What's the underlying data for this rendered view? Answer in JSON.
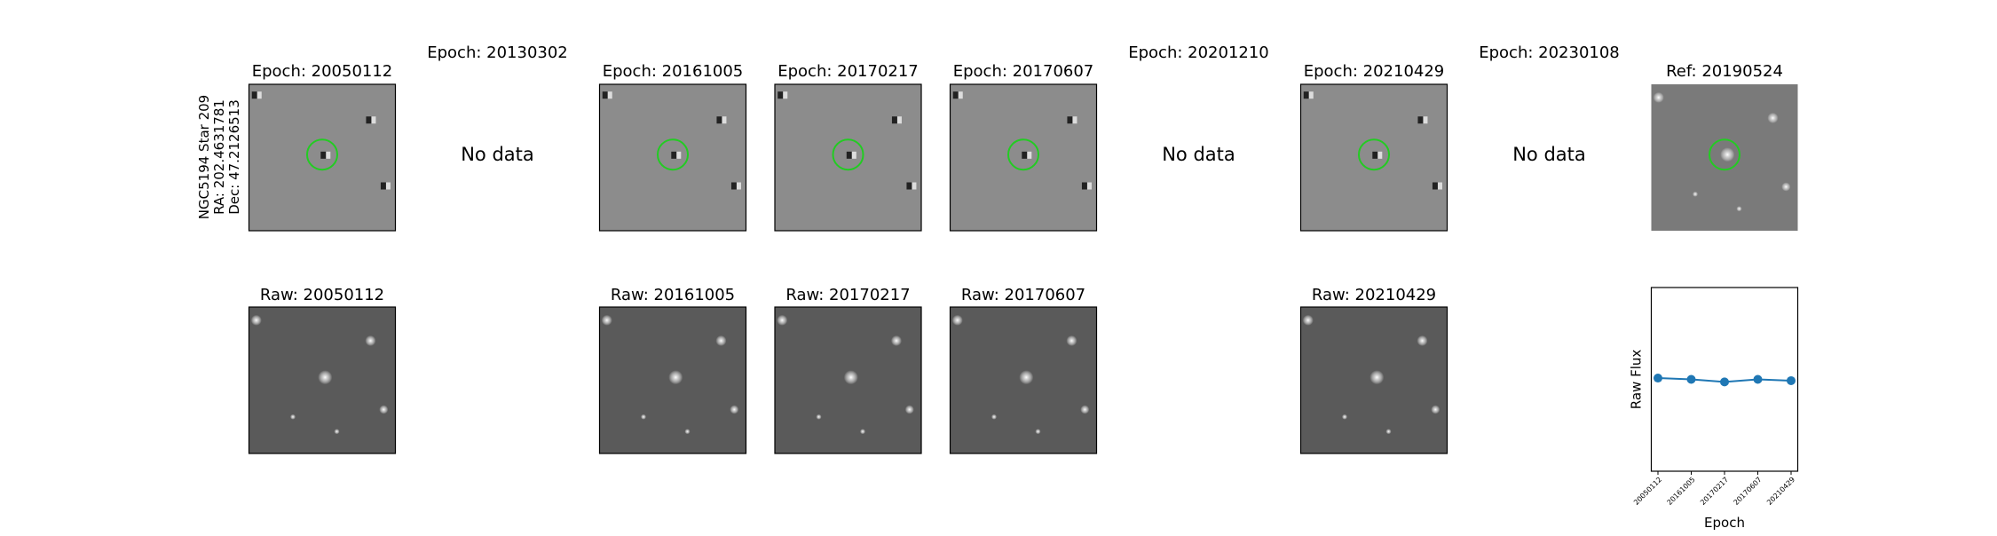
{
  "row_label": [
    "NGC5194 Star 209",
    "RA: 202.4631781",
    "Dec: 47.2126513"
  ],
  "epochs": [
    {
      "title": "Epoch: 20050112",
      "raw_title": "Raw: 20050112"
    },
    {
      "title": "Epoch: 20130302",
      "no_data": "No data"
    },
    {
      "title": "Epoch: 20161005",
      "raw_title": "Raw: 20161005"
    },
    {
      "title": "Epoch: 20170217",
      "raw_title": "Raw: 20170217"
    },
    {
      "title": "Epoch: 20170607",
      "raw_title": "Raw: 20170607"
    },
    {
      "title": "Epoch: 20201210",
      "no_data": "No data"
    },
    {
      "title": "Epoch: 20210429",
      "raw_title": "Raw: 20210429"
    },
    {
      "title": "Epoch: 20230108",
      "no_data": "No data"
    }
  ],
  "reference": {
    "title": "Ref: 20190524"
  },
  "chart_data": {
    "type": "line",
    "ylabel": "Raw Flux",
    "xlabel": "Epoch",
    "categories": [
      "20050112",
      "20161005",
      "20170217",
      "20170607",
      "20210429"
    ],
    "values": [
      0.507,
      0.5,
      0.486,
      0.5,
      0.493
    ],
    "color": "#1f77b4",
    "ylim": [
      0,
      1
    ]
  }
}
